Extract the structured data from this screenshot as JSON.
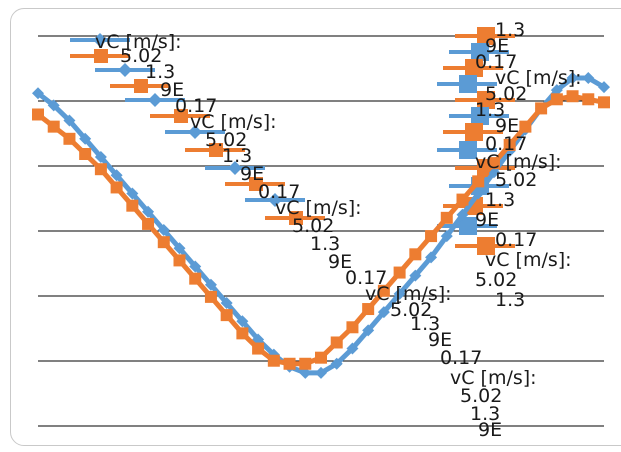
{
  "chart_data": {
    "type": "line",
    "grid": true,
    "legend": "top-right",
    "colors": {
      "series_a": "#5b9bd5",
      "series_b": "#ed7d31",
      "gridline": "#000000"
    },
    "series": [
      {
        "name": "vC [m/s]:",
        "marker": "diamond",
        "y": [
          0.95,
          0.91,
          0.86,
          0.8,
          0.74,
          0.68,
          0.62,
          0.56,
          0.5,
          0.44,
          0.38,
          0.32,
          0.26,
          0.2,
          0.14,
          0.09,
          0.05,
          0.03,
          0.03,
          0.06,
          0.11,
          0.17,
          0.23,
          0.29,
          0.35,
          0.41,
          0.48,
          0.55,
          0.62,
          0.69,
          0.76,
          0.83,
          0.9,
          0.96,
          1.0,
          1.0,
          0.97
        ]
      },
      {
        "name": "vC [m/s]:",
        "marker": "square",
        "y": [
          0.88,
          0.84,
          0.8,
          0.75,
          0.7,
          0.64,
          0.58,
          0.52,
          0.46,
          0.4,
          0.34,
          0.28,
          0.22,
          0.16,
          0.11,
          0.07,
          0.06,
          0.06,
          0.08,
          0.13,
          0.18,
          0.24,
          0.3,
          0.36,
          0.42,
          0.48,
          0.54,
          0.6,
          0.66,
          0.72,
          0.78,
          0.84,
          0.9,
          0.93,
          0.94,
          0.93,
          0.92
        ]
      }
    ],
    "label_fragments": [
      "vC [m/s]:",
      "5.02",
      "1.3",
      "9E",
      "0.17"
    ]
  }
}
